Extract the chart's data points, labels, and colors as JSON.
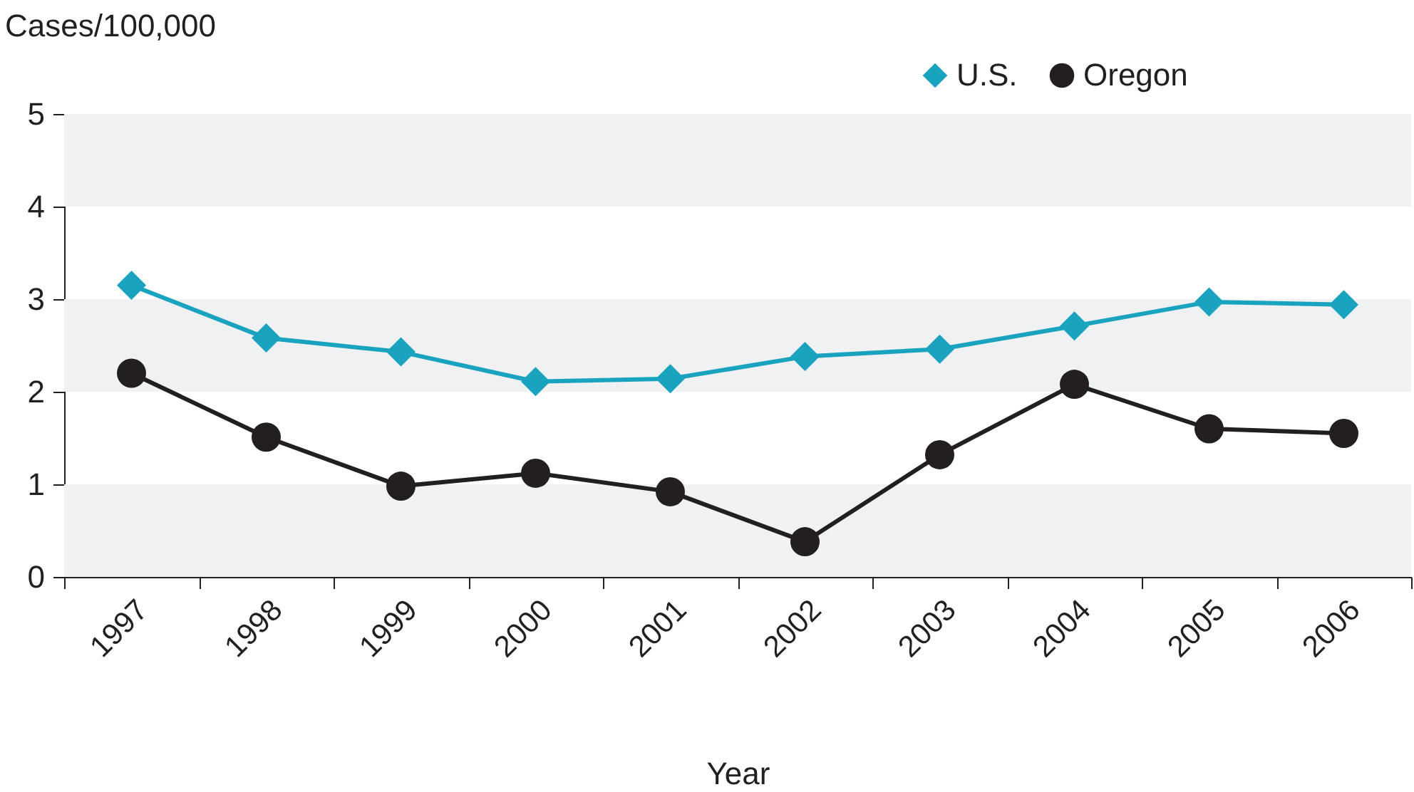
{
  "chart_data": {
    "type": "line",
    "ylabel": "Cases/100,000",
    "xlabel": "Year",
    "categories": [
      "1997",
      "1998",
      "1999",
      "2000",
      "2001",
      "2002",
      "2003",
      "2004",
      "2005",
      "2006"
    ],
    "series": [
      {
        "name": "U.S.",
        "color": "#1aa3bf",
        "marker": "diamond",
        "values": [
          3.15,
          2.58,
          2.43,
          2.11,
          2.14,
          2.38,
          2.46,
          2.71,
          2.97,
          2.94
        ]
      },
      {
        "name": "Oregon",
        "color": "#231f20",
        "marker": "circle",
        "values": [
          2.2,
          1.51,
          0.98,
          1.12,
          0.92,
          0.38,
          1.32,
          2.08,
          1.6,
          1.55
        ]
      }
    ],
    "ylim": [
      0,
      5
    ],
    "yticks": [
      0,
      1,
      2,
      3,
      4,
      5
    ],
    "legend": "top right",
    "bands": [
      {
        "axis": "y",
        "from": 0,
        "to": 1,
        "color": "#f0f1f3"
      },
      {
        "axis": "y",
        "from": 2,
        "to": 3,
        "color": "#f0f1f3"
      },
      {
        "axis": "y",
        "from": 4,
        "to": 5,
        "color": "#f0f1f3"
      }
    ]
  }
}
